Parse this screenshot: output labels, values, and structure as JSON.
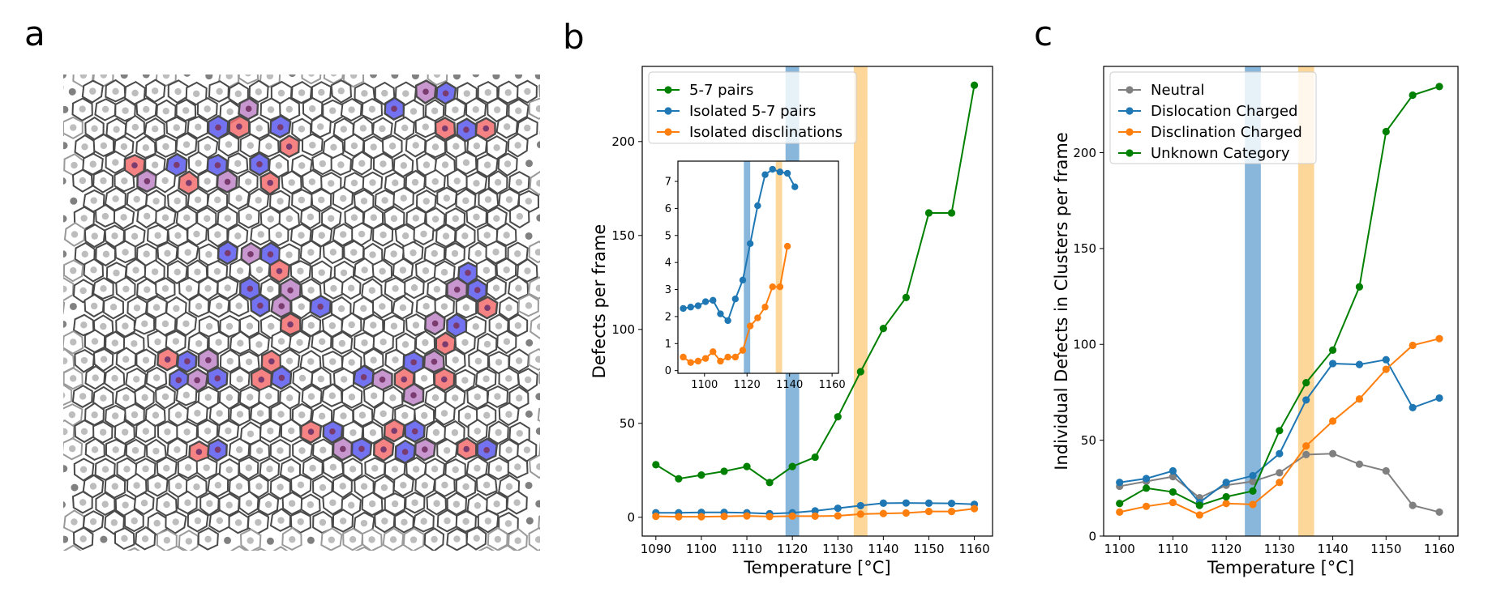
{
  "figure": {
    "panel_letters": [
      "a",
      "b",
      "c"
    ],
    "colors": {
      "green": "#008000",
      "blue": "#1f77b4",
      "orange": "#ff7f0e",
      "gray": "#808080",
      "band_blue": "#89b7db",
      "band_orange": "#fdd79a",
      "defect_red": "#f46d6d",
      "defect_blue": "#5a5af0",
      "defect_purple": "#c085c8"
    }
  },
  "chart_data": [
    {
      "panel": "a",
      "type": "image",
      "description_label": "Voronoi tessellation of particle lattice"
    },
    {
      "panel": "b",
      "type": "line",
      "title": "",
      "xlabel": "Temperature [°C]",
      "ylabel": "Defects per frame",
      "xlim": [
        1087,
        1164
      ],
      "ylim": [
        -10,
        240
      ],
      "xticks": [
        1090,
        1100,
        1110,
        1120,
        1130,
        1140,
        1150,
        1160
      ],
      "yticks": [
        0,
        50,
        100,
        150,
        200
      ],
      "bands": [
        {
          "x0": 1118.5,
          "x1": 1121.5,
          "color": "band_blue"
        },
        {
          "x0": 1133.5,
          "x1": 1136.5,
          "color": "band_orange"
        }
      ],
      "legend_position": "top-left",
      "x": [
        1090,
        1095,
        1100,
        1105,
        1110,
        1115,
        1120,
        1125,
        1130,
        1135,
        1140,
        1145,
        1150,
        1155,
        1160
      ],
      "series": [
        {
          "name": "5-7 pairs",
          "color": "green",
          "values": [
            28,
            20.5,
            22.5,
            24.5,
            27,
            18.5,
            27,
            32,
            53.5,
            77.5,
            100.5,
            117,
            162,
            162,
            230
          ]
        },
        {
          "name": "Isolated 5-7 pairs",
          "color": "blue",
          "values": [
            2.4,
            2.4,
            2.6,
            2.6,
            2.4,
            1.9,
            2.4,
            3.4,
            4.8,
            6.2,
            7.5,
            7.6,
            7.5,
            7.4,
            6.9
          ]
        },
        {
          "name": "Isolated disclinations",
          "color": "orange",
          "values": [
            0.5,
            0.3,
            0.3,
            0.5,
            0.7,
            0.4,
            0.6,
            0.6,
            0.8,
            1.7,
            2.0,
            2.3,
            3.1,
            3.1,
            4.6
          ]
        }
      ],
      "inset": {
        "xlim": [
          1087.5,
          1163
        ],
        "ylim": [
          -0.1,
          7.75
        ],
        "xticks": [
          1100,
          1120,
          1140,
          1160
        ],
        "yticks": [
          0,
          1,
          2,
          3,
          4,
          5,
          6,
          7
        ],
        "bands": [
          {
            "x0": 1118.5,
            "x1": 1121.5,
            "color": "band_blue"
          },
          {
            "x0": 1133.5,
            "x1": 1136.5,
            "color": "band_orange"
          }
        ],
        "x": [
          1090,
          1093.5,
          1097,
          1100.5,
          1104,
          1107.5,
          1111,
          1114.5,
          1118,
          1121.5,
          1125,
          1128.5,
          1132,
          1135.5,
          1139,
          1142.5,
          1146,
          1149.5,
          1153,
          1156.5,
          1160
        ],
        "series": [
          {
            "name": "Isolated 5-7 pairs",
            "color": "blue",
            "values": [
              2.3,
              2.35,
              2.4,
              2.55,
              2.6,
              2.1,
              1.85,
              2.65,
              3.35,
              4.7,
              6.1,
              7.25,
              7.45,
              7.35,
              7.3,
              6.8,
              null,
              null,
              null,
              null,
              null
            ]
          },
          {
            "name": "Isolated disclinations",
            "color": "orange",
            "values": [
              0.5,
              0.3,
              0.35,
              0.45,
              0.7,
              0.35,
              0.5,
              0.5,
              0.75,
              1.65,
              1.95,
              2.35,
              3.1,
              3.1,
              4.6,
              null,
              null,
              null,
              null,
              null,
              null
            ]
          }
        ]
      }
    },
    {
      "panel": "c",
      "type": "line",
      "title": "",
      "xlabel": "Temperature [°C]",
      "ylabel": "Individual Defects in Clusters per frame",
      "xlim": [
        1097,
        1163.5
      ],
      "ylim": [
        0,
        245
      ],
      "xticks": [
        1100,
        1110,
        1120,
        1130,
        1140,
        1150,
        1160
      ],
      "yticks": [
        0,
        50,
        100,
        150,
        200
      ],
      "bands": [
        {
          "x0": 1123.5,
          "x1": 1126.5,
          "color": "band_blue"
        },
        {
          "x0": 1133.5,
          "x1": 1136.5,
          "color": "band_orange"
        }
      ],
      "legend_position": "top-left",
      "x": [
        1100,
        1105,
        1110,
        1115,
        1120,
        1125,
        1130,
        1135,
        1140,
        1145,
        1150,
        1155,
        1160
      ],
      "series": [
        {
          "name": "Neutral",
          "color": "gray",
          "values": [
            26,
            28.5,
            31,
            20,
            26.5,
            28.5,
            33,
            42.5,
            43,
            37.5,
            34,
            16,
            12.5
          ]
        },
        {
          "name": "Dislocation Charged",
          "color": "blue",
          "values": [
            28,
            30,
            34,
            17.5,
            28,
            31.5,
            43,
            71,
            90,
            89.5,
            92,
            67,
            72
          ]
        },
        {
          "name": "Disclination Charged",
          "color": "orange",
          "values": [
            12.5,
            15.5,
            17.5,
            11,
            17,
            16.5,
            28,
            47,
            60,
            71.5,
            87,
            99.5,
            103
          ]
        },
        {
          "name": "Unknown Category",
          "color": "green",
          "values": [
            17,
            25,
            23,
            16,
            20.5,
            23.5,
            55,
            80,
            97,
            130,
            211,
            230,
            234.5
          ]
        }
      ]
    }
  ]
}
